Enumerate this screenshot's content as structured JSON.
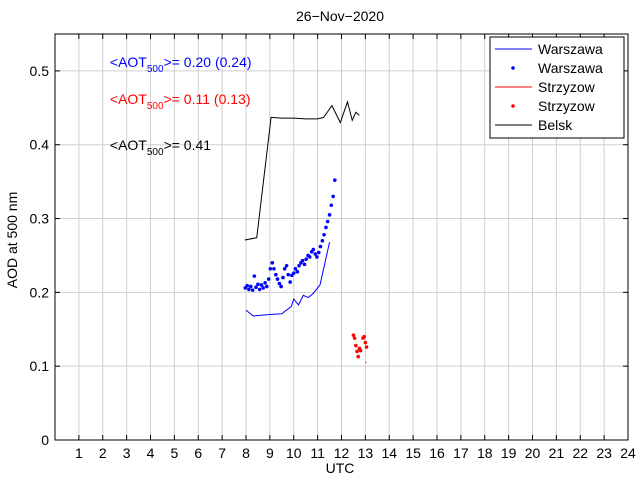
{
  "chart_data": {
    "type": "line",
    "title": "26−Nov−2020",
    "xlabel": "UTC",
    "ylabel": "AOD at 500 nm",
    "xlim": [
      0,
      24
    ],
    "ylim": [
      0,
      0.55
    ],
    "xticks": [
      1,
      2,
      3,
      4,
      5,
      6,
      7,
      8,
      9,
      10,
      11,
      12,
      13,
      14,
      15,
      16,
      17,
      18,
      19,
      20,
      21,
      22,
      23,
      24
    ],
    "yticks": [
      0,
      0.1,
      0.2,
      0.3,
      0.4,
      0.5
    ],
    "ytick_labels": [
      "0",
      "0.1",
      "0.2",
      "0.3",
      "0.4",
      "0.5"
    ],
    "grid": true,
    "legend_position": "top-right",
    "annotations": [
      {
        "prefix": "<AOT",
        "sub": "500",
        "suffix": ">= 0.20 (0.24)",
        "color": "#0000ff",
        "x": 2.3,
        "y": 0.505
      },
      {
        "prefix": "<AOT",
        "sub": "500",
        "suffix": ">= 0.11 (0.13)",
        "color": "#ff0000",
        "x": 2.3,
        "y": 0.455
      },
      {
        "prefix": "<AOT",
        "sub": "500",
        "suffix": ">= 0.41",
        "color": "#000000",
        "x": 2.3,
        "y": 0.393
      }
    ],
    "series": [
      {
        "name": "Warszawa",
        "kind": "line",
        "color": "#0000ff",
        "x": [
          8.0,
          8.3,
          9.0,
          9.5,
          9.9,
          10.0,
          10.2,
          10.4,
          10.6,
          10.8,
          11.1,
          11.5
        ],
        "y": [
          0.176,
          0.168,
          0.17,
          0.171,
          0.181,
          0.191,
          0.183,
          0.196,
          0.193,
          0.198,
          0.21,
          0.268
        ]
      },
      {
        "name": "Warszawa",
        "kind": "points",
        "color": "#0000ff",
        "x": [
          7.97,
          8.05,
          8.12,
          8.2,
          8.28,
          8.35,
          8.42,
          8.5,
          8.57,
          8.65,
          8.72,
          8.8,
          8.87,
          8.95,
          9.02,
          9.1,
          9.17,
          9.25,
          9.32,
          9.4,
          9.47,
          9.55,
          9.62,
          9.7,
          9.77,
          9.85,
          9.92,
          10.0,
          10.07,
          10.15,
          10.22,
          10.3,
          10.37,
          10.45,
          10.52,
          10.6,
          10.67,
          10.75,
          10.82,
          10.9,
          10.97,
          11.05,
          11.12,
          11.2,
          11.27,
          11.35,
          11.42,
          11.5,
          11.57,
          11.65,
          11.72
        ],
        "y": [
          0.206,
          0.209,
          0.204,
          0.208,
          0.203,
          0.222,
          0.207,
          0.211,
          0.204,
          0.21,
          0.206,
          0.213,
          0.208,
          0.218,
          0.232,
          0.24,
          0.232,
          0.224,
          0.218,
          0.212,
          0.208,
          0.22,
          0.232,
          0.236,
          0.224,
          0.214,
          0.223,
          0.226,
          0.232,
          0.228,
          0.236,
          0.24,
          0.243,
          0.238,
          0.245,
          0.25,
          0.248,
          0.255,
          0.258,
          0.252,
          0.248,
          0.254,
          0.262,
          0.27,
          0.278,
          0.288,
          0.296,
          0.305,
          0.318,
          0.33,
          0.352
        ]
      },
      {
        "name": "Strzyzow",
        "kind": "line",
        "color": "#ff0000",
        "x": [
          13.0,
          13.05
        ],
        "y": [
          0.105,
          0.105
        ]
      },
      {
        "name": "Strzyzow",
        "kind": "points",
        "color": "#ff0000",
        "x": [
          12.5,
          12.55,
          12.6,
          12.65,
          12.7,
          12.75,
          12.8,
          12.9,
          12.95,
          13.0,
          13.05
        ],
        "y": [
          0.142,
          0.138,
          0.128,
          0.12,
          0.113,
          0.124,
          0.121,
          0.138,
          0.14,
          0.132,
          0.126
        ]
      },
      {
        "name": "Belsk",
        "kind": "line",
        "color": "#000000",
        "x": [
          7.95,
          8.45,
          9.05,
          9.5,
          10.0,
          10.5,
          11.0,
          11.25,
          11.6,
          11.95,
          12.25,
          12.45,
          12.6,
          12.75
        ],
        "y": [
          0.271,
          0.274,
          0.437,
          0.436,
          0.436,
          0.435,
          0.435,
          0.437,
          0.453,
          0.43,
          0.458,
          0.433,
          0.444,
          0.44
        ]
      }
    ],
    "legend": [
      {
        "label": "Warszawa",
        "kind": "line",
        "color": "#0000ff"
      },
      {
        "label": "Warszawa",
        "kind": "points",
        "color": "#0000ff"
      },
      {
        "label": "Strzyzow",
        "kind": "line",
        "color": "#ff0000"
      },
      {
        "label": "Strzyzow",
        "kind": "points",
        "color": "#ff0000"
      },
      {
        "label": "Belsk",
        "kind": "line",
        "color": "#000000"
      }
    ]
  }
}
